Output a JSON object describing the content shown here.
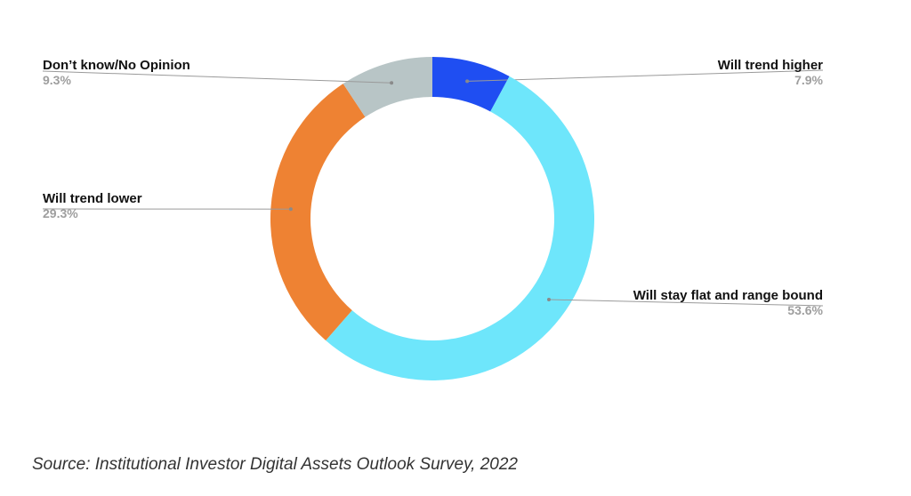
{
  "chart_data": {
    "type": "pie",
    "donut": true,
    "slices": [
      {
        "label": "Will trend higher",
        "value": 7.9,
        "value_label": "7.9%",
        "color": "#1f4ef2"
      },
      {
        "label": "Will stay flat and range bound",
        "value": 53.6,
        "value_label": "53.6%",
        "color": "#6ee6fb"
      },
      {
        "label": "Will trend lower",
        "value": 29.3,
        "value_label": "29.3%",
        "color": "#ee8233"
      },
      {
        "label": "Don’t know/No Opinion",
        "value": 9.3,
        "value_label": "9.3%",
        "color": "#b8c5c6"
      }
    ],
    "legend": "none"
  },
  "source": "Source: Institutional Investor Digital Assets Outlook Survey, 2022"
}
